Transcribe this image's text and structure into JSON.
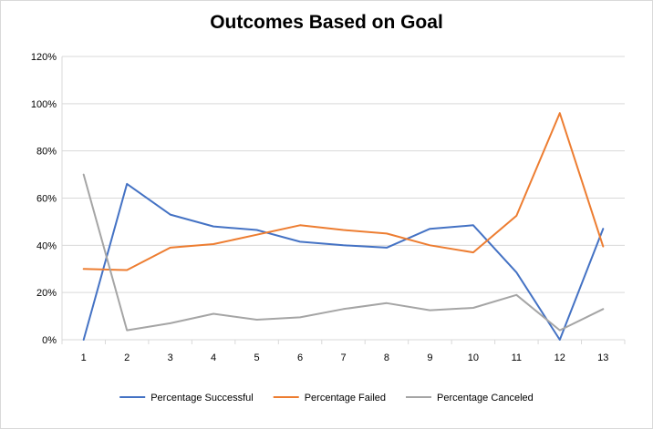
{
  "chart_data": {
    "type": "line",
    "title": "Outcomes Based on Goal",
    "xlabel": "",
    "ylabel": "",
    "x": [
      1,
      2,
      3,
      4,
      5,
      6,
      7,
      8,
      9,
      10,
      11,
      12,
      13
    ],
    "x_tick_labels": [
      "1",
      "2",
      "3",
      "4",
      "5",
      "6",
      "7",
      "8",
      "9",
      "10",
      "11",
      "12",
      "13"
    ],
    "ylim": [
      0,
      1.2
    ],
    "y_ticks": [
      0,
      0.2,
      0.4,
      0.6,
      0.8,
      1.0,
      1.2
    ],
    "y_tick_labels": [
      "0%",
      "20%",
      "40%",
      "60%",
      "80%",
      "100%",
      "120%"
    ],
    "grid": "horizontal",
    "legend_position": "bottom",
    "series": [
      {
        "name": "Percentage Successful",
        "color": "#4472C4",
        "values": [
          0.0,
          0.66,
          0.53,
          0.48,
          0.465,
          0.415,
          0.4,
          0.39,
          0.47,
          0.485,
          0.285,
          0.0,
          0.47
        ]
      },
      {
        "name": "Percentage Failed",
        "color": "#ED7D31",
        "values": [
          0.3,
          0.295,
          0.39,
          0.405,
          0.445,
          0.485,
          0.465,
          0.45,
          0.4,
          0.37,
          0.525,
          0.96,
          0.395
        ]
      },
      {
        "name": "Percentage Canceled",
        "color": "#A5A5A5",
        "values": [
          0.7,
          0.04,
          0.07,
          0.11,
          0.085,
          0.095,
          0.13,
          0.155,
          0.125,
          0.135,
          0.19,
          0.04,
          0.13
        ]
      }
    ]
  }
}
